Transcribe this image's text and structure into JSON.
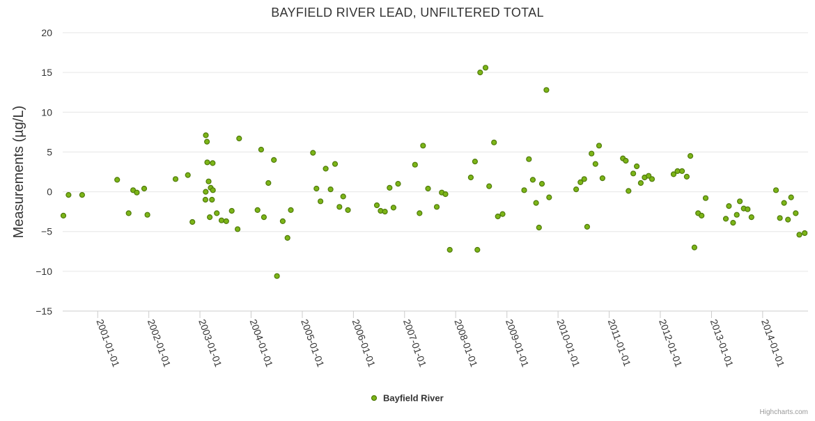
{
  "chart_data": {
    "type": "scatter",
    "title": "BAYFIELD RIVER LEAD, UNFILTERED TOTAL",
    "ylabel": "Measurements (µg/L)",
    "xlabel": "",
    "x_type": "date",
    "xlim": [
      "2000-04-26",
      "2014-11-21"
    ],
    "ylim": [
      -15,
      20
    ],
    "y_ticks": [
      -15,
      -10,
      -5,
      0,
      5,
      10,
      15,
      20
    ],
    "y_tick_labels": [
      "−15",
      "−10",
      "−5",
      "0",
      "5",
      "10",
      "15",
      "20"
    ],
    "x_ticks": [
      "2001-01-01",
      "2002-01-01",
      "2003-01-01",
      "2004-01-01",
      "2005-01-01",
      "2006-01-01",
      "2007-01-01",
      "2008-01-01",
      "2009-01-01",
      "2010-01-01",
      "2011-01-01",
      "2012-01-01",
      "2013-01-01",
      "2014-01-01"
    ],
    "grid": "horizontal",
    "legend_position": "bottom-center",
    "series": [
      {
        "name": "Bayfield River",
        "color": "#7cb518",
        "marker_stroke": "#4f7a0a",
        "points": [
          [
            "2000-05-01",
            -3.0
          ],
          [
            "2000-06-07",
            -0.4
          ],
          [
            "2000-09-12",
            -0.4
          ],
          [
            "2001-05-20",
            1.5
          ],
          [
            "2001-08-10",
            -2.7
          ],
          [
            "2001-09-11",
            0.2
          ],
          [
            "2001-10-07",
            -0.1
          ],
          [
            "2001-11-29",
            0.4
          ],
          [
            "2001-12-22",
            -2.9
          ],
          [
            "2002-07-11",
            1.6
          ],
          [
            "2002-10-07",
            2.1
          ],
          [
            "2002-11-08",
            -3.8
          ],
          [
            "2003-02-09",
            -1.0
          ],
          [
            "2003-02-11",
            0.0
          ],
          [
            "2003-02-12",
            7.1
          ],
          [
            "2003-02-20",
            6.3
          ],
          [
            "2003-02-22",
            3.7
          ],
          [
            "2003-03-04",
            1.3
          ],
          [
            "2003-03-12",
            -3.2
          ],
          [
            "2003-03-19",
            0.5
          ],
          [
            "2003-03-28",
            -1.0
          ],
          [
            "2003-04-02",
            3.6
          ],
          [
            "2003-04-04",
            0.2
          ],
          [
            "2003-05-01",
            -2.7
          ],
          [
            "2003-06-04",
            -3.6
          ],
          [
            "2003-07-08",
            -3.7
          ],
          [
            "2003-08-16",
            -2.4
          ],
          [
            "2003-09-27",
            -4.7
          ],
          [
            "2003-10-08",
            6.7
          ],
          [
            "2004-02-16",
            -2.3
          ],
          [
            "2004-03-13",
            5.3
          ],
          [
            "2004-04-02",
            -3.2
          ],
          [
            "2004-05-04",
            1.1
          ],
          [
            "2004-06-12",
            4.0
          ],
          [
            "2004-07-04",
            -10.6
          ],
          [
            "2004-08-14",
            -3.7
          ],
          [
            "2004-09-17",
            -5.8
          ],
          [
            "2004-10-11",
            -2.3
          ],
          [
            "2005-03-18",
            4.9
          ],
          [
            "2005-04-12",
            0.4
          ],
          [
            "2005-05-11",
            -1.2
          ],
          [
            "2005-06-17",
            2.9
          ],
          [
            "2005-07-22",
            0.3
          ],
          [
            "2005-08-23",
            3.5
          ],
          [
            "2005-09-23",
            -1.9
          ],
          [
            "2005-10-20",
            -0.6
          ],
          [
            "2005-11-23",
            -2.3
          ],
          [
            "2006-06-17",
            -1.7
          ],
          [
            "2006-07-14",
            -2.4
          ],
          [
            "2006-08-14",
            -2.5
          ],
          [
            "2006-09-16",
            0.5
          ],
          [
            "2006-10-14",
            -2.0
          ],
          [
            "2006-11-16",
            1.0
          ],
          [
            "2007-03-17",
            3.4
          ],
          [
            "2007-04-18",
            -2.7
          ],
          [
            "2007-05-13",
            5.8
          ],
          [
            "2007-06-18",
            0.4
          ],
          [
            "2007-08-19",
            -1.9
          ],
          [
            "2007-09-24",
            -0.1
          ],
          [
            "2007-10-20",
            -0.3
          ],
          [
            "2007-11-20",
            -7.3
          ],
          [
            "2008-04-18",
            1.8
          ],
          [
            "2008-05-18",
            3.8
          ],
          [
            "2008-06-04",
            -7.3
          ],
          [
            "2008-06-24",
            15.0
          ],
          [
            "2008-08-01",
            15.6
          ],
          [
            "2008-08-27",
            0.7
          ],
          [
            "2008-10-01",
            6.2
          ],
          [
            "2008-10-28",
            -3.1
          ],
          [
            "2008-12-01",
            -2.8
          ],
          [
            "2009-05-04",
            0.2
          ],
          [
            "2009-06-07",
            4.1
          ],
          [
            "2009-07-05",
            1.5
          ],
          [
            "2009-07-28",
            -1.4
          ],
          [
            "2009-08-18",
            -4.5
          ],
          [
            "2009-09-08",
            1.0
          ],
          [
            "2009-10-10",
            12.8
          ],
          [
            "2009-10-29",
            -0.7
          ],
          [
            "2010-05-10",
            0.3
          ],
          [
            "2010-06-10",
            1.2
          ],
          [
            "2010-07-07",
            1.6
          ],
          [
            "2010-07-28",
            -4.4
          ],
          [
            "2010-08-28",
            4.8
          ],
          [
            "2010-09-25",
            3.5
          ],
          [
            "2010-10-21",
            5.8
          ],
          [
            "2010-11-14",
            1.7
          ],
          [
            "2011-04-09",
            4.2
          ],
          [
            "2011-04-30",
            3.9
          ],
          [
            "2011-05-19",
            0.1
          ],
          [
            "2011-06-22",
            2.3
          ],
          [
            "2011-07-17",
            3.2
          ],
          [
            "2011-08-15",
            1.1
          ],
          [
            "2011-09-11",
            1.8
          ],
          [
            "2011-10-10",
            2.0
          ],
          [
            "2011-11-03",
            1.6
          ],
          [
            "2012-04-05",
            2.2
          ],
          [
            "2012-05-03",
            2.6
          ],
          [
            "2012-06-04",
            2.6
          ],
          [
            "2012-07-08",
            1.9
          ],
          [
            "2012-08-03",
            4.5
          ],
          [
            "2012-09-01",
            -7.0
          ],
          [
            "2012-09-27",
            -2.7
          ],
          [
            "2012-10-22",
            -3.0
          ],
          [
            "2012-11-20",
            -0.8
          ],
          [
            "2013-04-13",
            -3.4
          ],
          [
            "2013-05-05",
            -1.8
          ],
          [
            "2013-06-04",
            -3.9
          ],
          [
            "2013-06-30",
            -2.9
          ],
          [
            "2013-07-22",
            -1.2
          ],
          [
            "2013-08-19",
            -2.1
          ],
          [
            "2013-09-16",
            -2.2
          ],
          [
            "2013-10-13",
            -3.2
          ],
          [
            "2014-04-06",
            0.2
          ],
          [
            "2014-05-04",
            -3.3
          ],
          [
            "2014-06-03",
            -1.4
          ],
          [
            "2014-07-01",
            -3.5
          ],
          [
            "2014-07-23",
            -0.7
          ],
          [
            "2014-08-25",
            -2.7
          ],
          [
            "2014-09-20",
            -5.4
          ],
          [
            "2014-10-28",
            -5.2
          ]
        ]
      }
    ]
  },
  "credits": "Highcharts.com"
}
